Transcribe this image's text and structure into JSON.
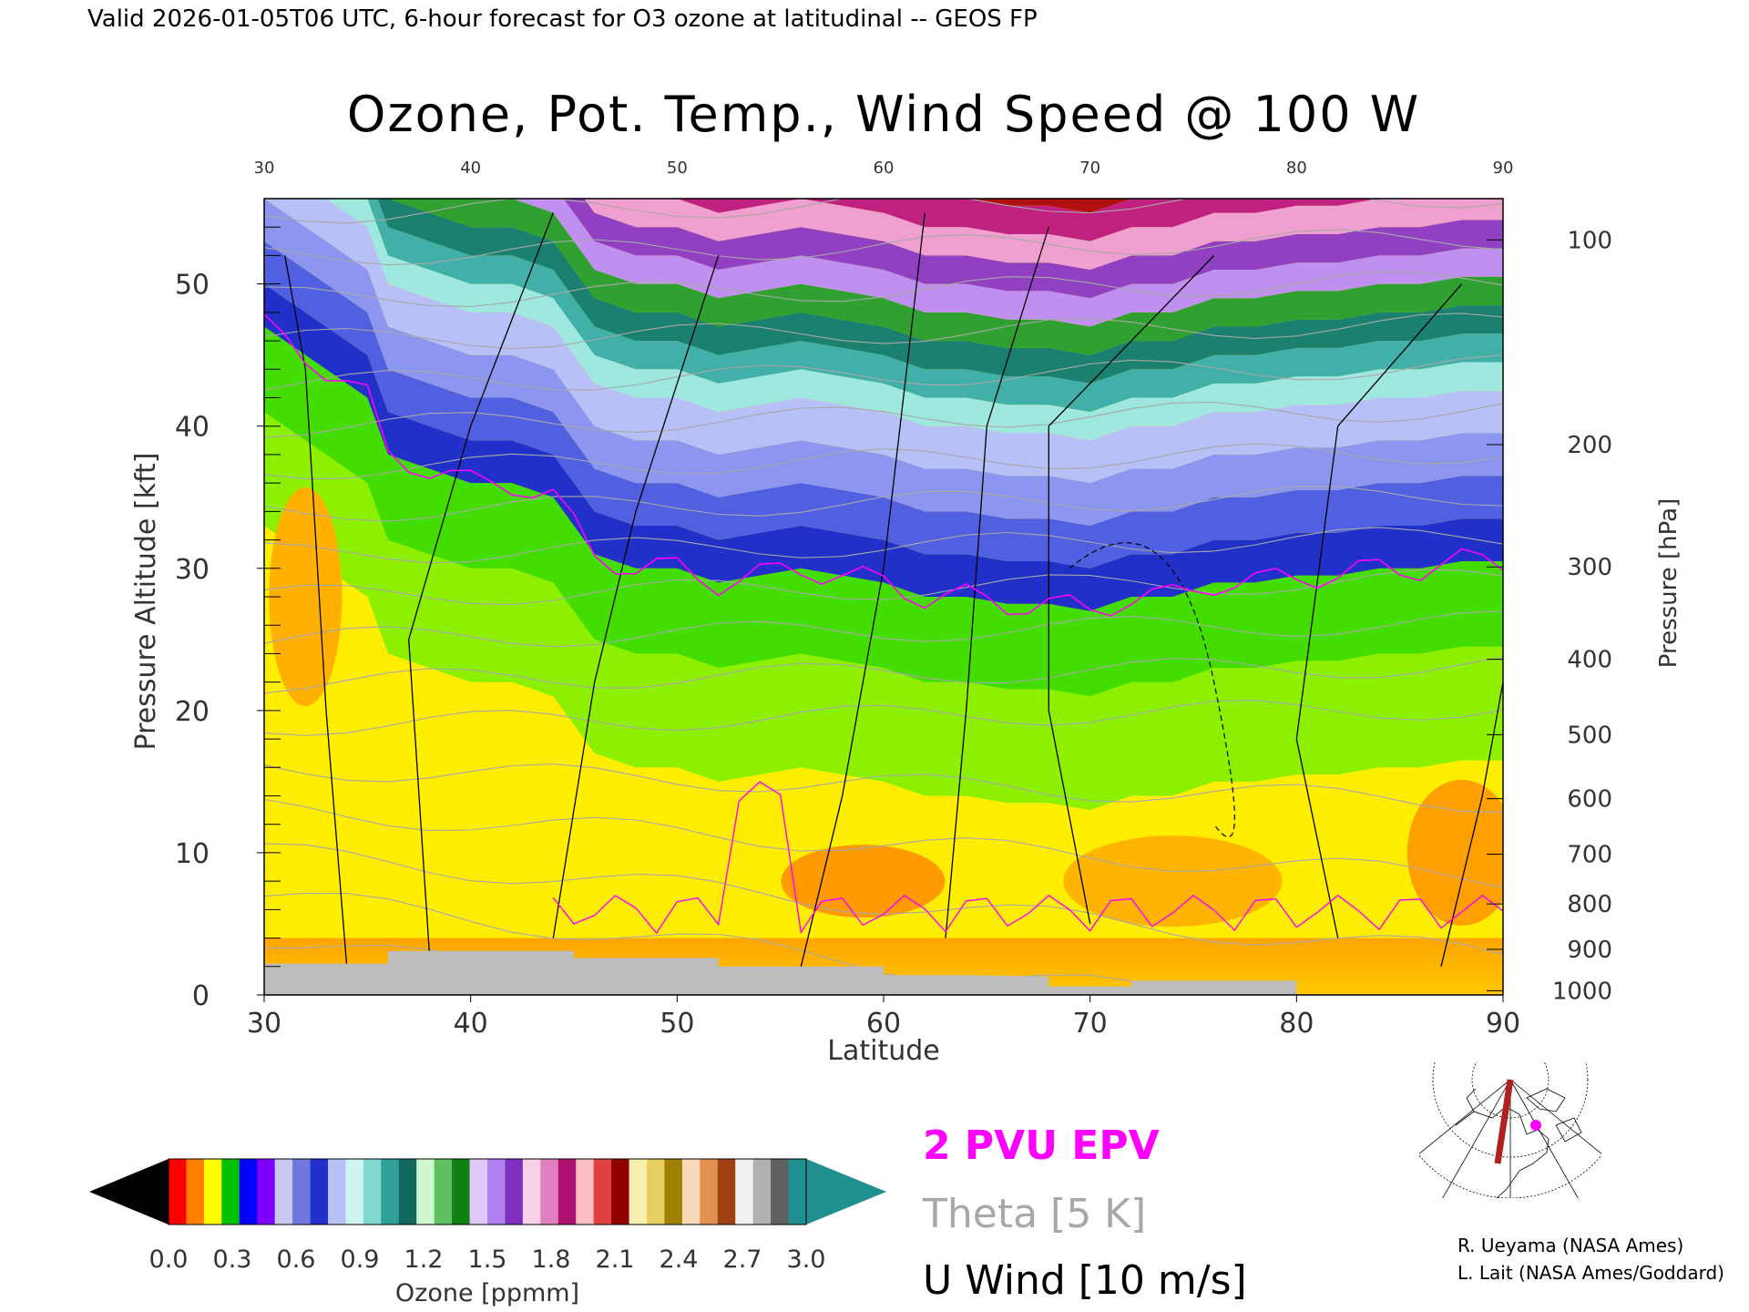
{
  "header": {
    "valid_line": "Valid 2026-01-05T06 UTC, 6-hour forecast for O3 ozone at latitudinal -- GEOS FP"
  },
  "chart_data": {
    "type": "heatmap",
    "title": "Ozone, Pot. Temp., Wind Speed @ 100 W",
    "xlabel": "Latitude",
    "ylabel_left": "Pressure Altitude [kft]",
    "ylabel_right": "Pressure [hPa]",
    "xlim": [
      30,
      90
    ],
    "ylim_kft": [
      0,
      56
    ],
    "x_ticks": [
      30,
      40,
      50,
      60,
      70,
      80,
      90
    ],
    "x_top_ticks": [
      30,
      40,
      50,
      60,
      70,
      80,
      90
    ],
    "y_ticks_kft": [
      0,
      10,
      20,
      30,
      40,
      50
    ],
    "pressure_ticks": [
      {
        "hpa": 100,
        "kft": 53.1
      },
      {
        "hpa": 200,
        "kft": 38.7
      },
      {
        "hpa": 300,
        "kft": 30.1
      },
      {
        "hpa": 400,
        "kft": 23.6
      },
      {
        "hpa": 500,
        "kft": 18.3
      },
      {
        "hpa": 600,
        "kft": 13.8
      },
      {
        "hpa": 700,
        "kft": 9.9
      },
      {
        "hpa": 800,
        "kft": 6.4
      },
      {
        "hpa": 900,
        "kft": 3.2
      },
      {
        "hpa": 1000,
        "kft": 0.3
      }
    ],
    "tropopause_kft": [
      [
        30,
        47
      ],
      [
        32,
        45
      ],
      [
        34,
        43
      ],
      [
        35,
        42
      ],
      [
        36,
        38
      ],
      [
        38,
        37
      ],
      [
        40,
        36
      ],
      [
        42,
        36
      ],
      [
        44,
        35
      ],
      [
        46,
        31
      ],
      [
        48,
        30
      ],
      [
        50,
        30
      ],
      [
        52,
        29
      ],
      [
        54,
        29.5
      ],
      [
        56,
        30
      ],
      [
        58,
        29.5
      ],
      [
        60,
        29
      ],
      [
        62,
        28
      ],
      [
        64,
        28
      ],
      [
        66,
        27.5
      ],
      [
        68,
        27.5
      ],
      [
        70,
        27
      ],
      [
        72,
        28
      ],
      [
        74,
        28
      ],
      [
        76,
        29
      ],
      [
        78,
        29
      ],
      [
        80,
        29.5
      ],
      [
        82,
        29.5
      ],
      [
        84,
        30
      ],
      [
        86,
        30
      ],
      [
        88,
        30.5
      ],
      [
        90,
        30.5
      ]
    ],
    "ground_kft": [
      [
        30,
        2.2
      ],
      [
        36,
        2.2
      ],
      [
        36,
        3.1
      ],
      [
        45,
        3.1
      ],
      [
        45,
        2.6
      ],
      [
        52,
        2.6
      ],
      [
        52,
        2.0
      ],
      [
        60,
        2.0
      ],
      [
        60,
        1.4
      ],
      [
        64,
        1.4
      ],
      [
        68,
        1.3
      ],
      [
        68,
        0.6
      ],
      [
        72,
        0.6
      ],
      [
        72,
        1.0
      ],
      [
        80,
        1.0
      ],
      [
        80,
        0
      ],
      [
        30,
        0
      ]
    ],
    "colorbar": {
      "label": "Ozone [ppmm]",
      "ticks": [
        "0.0",
        "0.3",
        "0.6",
        "0.9",
        "1.2",
        "1.5",
        "1.8",
        "2.1",
        "2.4",
        "2.7",
        "3.0"
      ],
      "range": [
        0,
        3.0
      ],
      "low_extend_color": "#000000",
      "high_extend_color": "#1f8f8f"
    },
    "legend": {
      "epv_label": "2 PVU EPV",
      "theta_label": "Theta [5 K]",
      "wind_label": "U Wind [10 m/s]"
    },
    "theta_levels_k": [
      280,
      290,
      300,
      310,
      320,
      330,
      340,
      350,
      360,
      370,
      380,
      390,
      400,
      410,
      420,
      430,
      440,
      450,
      460
    ],
    "wind_contours": [
      "0",
      "10",
      "20",
      "30",
      "50"
    ],
    "colors": {
      "epv": "#ff00ff",
      "theta": "#a8a8a8",
      "wind": "#000000",
      "ground": "#bdbdbd"
    }
  },
  "credits": {
    "line1": "R. Ueyama (NASA Ames)",
    "line2": "L. Lait (NASA Ames/Goddard)"
  },
  "inset_map": {
    "section_color": "#b02020",
    "marker_color": "#ff00ff"
  }
}
